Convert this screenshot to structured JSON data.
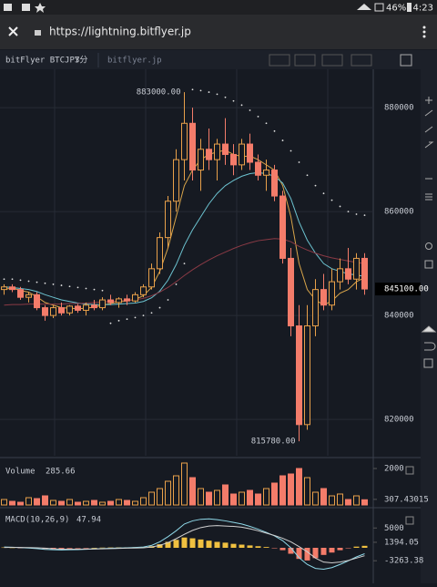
{
  "status_bar": {
    "battery": "46%",
    "time": "4:23"
  },
  "browser": {
    "url": "https://lightning.bitflyer.jp"
  },
  "toolbar": {
    "symbol": "bitFlyer BTCJPY",
    "interval": "3分",
    "site": "bitflyer.jp"
  },
  "chart_data": [
    {
      "type": "candlestick",
      "up_color": "#e8a04a",
      "down_color": "#f47c6a",
      "open": [
        845000,
        845500,
        845000,
        843500,
        844000,
        841500,
        840000,
        841500,
        840500,
        841800,
        841000,
        842000,
        841500,
        843000,
        842500,
        843200,
        842800,
        844000,
        845500,
        849000,
        855000,
        862000,
        870000,
        877000,
        868000,
        872000,
        870000,
        873000,
        871000,
        869000,
        873000,
        869500,
        867000,
        868000,
        863000,
        851000,
        838000,
        819000,
        838000,
        845000,
        842000,
        846500,
        849000,
        847000,
        851000
      ],
      "high": [
        846000,
        846000,
        845500,
        844500,
        844500,
        842000,
        842000,
        842500,
        842000,
        842200,
        842500,
        843000,
        843500,
        844000,
        843500,
        844000,
        844500,
        846000,
        850000,
        856000,
        863000,
        872000,
        883000,
        880000,
        874000,
        876000,
        874000,
        878000,
        873000,
        874000,
        875000,
        871000,
        870000,
        869000,
        864000,
        853000,
        842000,
        842000,
        847000,
        848000,
        849000,
        851000,
        853000,
        852000,
        852000
      ],
      "low": [
        844000,
        844500,
        843000,
        842500,
        841000,
        839000,
        839500,
        840000,
        840000,
        840500,
        840000,
        841000,
        841000,
        842000,
        841500,
        842000,
        842500,
        843500,
        845000,
        848000,
        853000,
        860000,
        866000,
        866000,
        864000,
        868000,
        866000,
        869000,
        867000,
        868000,
        868000,
        866000,
        864000,
        862000,
        850000,
        836000,
        815780,
        818000,
        836000,
        841000,
        841000,
        845000,
        846000,
        845000,
        844000
      ],
      "close": [
        845500,
        845000,
        843500,
        844000,
        841500,
        840000,
        841500,
        840500,
        841800,
        841000,
        842000,
        841500,
        843000,
        842500,
        843200,
        842800,
        844000,
        845500,
        849000,
        855000,
        862000,
        870000,
        877000,
        868000,
        872000,
        870000,
        873000,
        871000,
        869000,
        873000,
        869500,
        867000,
        868000,
        863000,
        851000,
        838000,
        819000,
        838000,
        845000,
        842000,
        846500,
        849000,
        847000,
        851000,
        845100
      ],
      "series": [
        {
          "color": "#d9a54a",
          "values": [
            845000,
            845300,
            844800,
            844500,
            843600,
            842500,
            842000,
            841500,
            841400,
            841300,
            841400,
            841600,
            842000,
            842300,
            842600,
            842800,
            843100,
            843800,
            845400,
            848500,
            853000,
            859000,
            865000,
            868000,
            870000,
            871000,
            871500,
            871800,
            871000,
            870600,
            870700,
            870000,
            869000,
            868000,
            865000,
            859000,
            850000,
            845000,
            843000,
            842000,
            842800,
            844300,
            845000,
            846500,
            847300
          ]
        },
        {
          "color": "#6cc3d0",
          "values": [
            845500,
            845400,
            845200,
            845000,
            844600,
            844000,
            843500,
            843000,
            842700,
            842400,
            842200,
            842100,
            842100,
            842100,
            842200,
            842300,
            842400,
            842700,
            843400,
            844700,
            846800,
            849800,
            853500,
            856500,
            859000,
            861500,
            863500,
            865000,
            866000,
            866800,
            867300,
            867500,
            867300,
            866800,
            865500,
            862500,
            858000,
            854500,
            852000,
            850000,
            849000,
            848500,
            848000,
            847800,
            847500
          ]
        },
        {
          "color": "#8a3a45",
          "values": [
            842000,
            842100,
            842100,
            842200,
            842200,
            842200,
            842200,
            842200,
            842300,
            842300,
            842400,
            842500,
            842600,
            842700,
            842800,
            842900,
            843000,
            843300,
            843800,
            844500,
            845400,
            846500,
            847700,
            848800,
            849800,
            850700,
            851500,
            852200,
            852900,
            853500,
            854000,
            854400,
            854600,
            854800,
            854700,
            854200,
            853300,
            852600,
            852000,
            851500,
            851100,
            850800,
            850500,
            850200,
            850000
          ]
        }
      ],
      "sar": {
        "color": "#e0e0e0",
        "values": [
          847000,
          847000,
          846800,
          846600,
          846400,
          846200,
          846000,
          845800,
          845600,
          845400,
          845200,
          845000,
          844800,
          838500,
          839000,
          839300,
          839600,
          840000,
          840500,
          841500,
          843000,
          846000,
          850000,
          883500,
          883300,
          883000,
          882600,
          882000,
          881300,
          880500,
          879500,
          878300,
          877000,
          875500,
          873700,
          871700,
          869500,
          867000,
          865000,
          863500,
          862200,
          861000,
          860000,
          859500,
          859300
        ]
      },
      "annotations": [
        {
          "value": 883000,
          "label": "883000.00"
        },
        {
          "value": 815780,
          "label": "815780.00"
        }
      ],
      "last": {
        "value": 845100,
        "label": "845100.00"
      },
      "ylim": [
        813000,
        887400
      ],
      "yticks": [
        820000,
        840000,
        860000,
        880000
      ],
      "grid": true
    },
    {
      "type": "bar",
      "title": "Volume",
      "current": 285.66,
      "values": [
        300,
        200,
        150,
        400,
        350,
        500,
        250,
        200,
        300,
        150,
        200,
        250,
        150,
        200,
        300,
        250,
        200,
        400,
        700,
        900,
        1300,
        1600,
        2300,
        1500,
        900,
        700,
        800,
        1100,
        600,
        700,
        800,
        600,
        900,
        1200,
        1600,
        1700,
        2000,
        1500,
        700,
        900,
        500,
        600,
        300,
        500,
        285.66
      ],
      "ylim": [
        0,
        2400
      ],
      "yticks": [
        307.43015,
        2000
      ]
    },
    {
      "type": "macd",
      "title": "MACD(10,26,9)",
      "current": 47.94,
      "pos_color": "#f0c040",
      "neg_color": "#f47c6a",
      "values": [
        100,
        50,
        -50,
        -100,
        -200,
        -300,
        -250,
        -200,
        -150,
        -100,
        -50,
        0,
        50,
        80,
        100,
        120,
        150,
        200,
        400,
        900,
        1500,
        2000,
        2600,
        2400,
        2100,
        1800,
        1500,
        1300,
        1000,
        800,
        600,
        400,
        200,
        -100,
        -600,
        -1500,
        -2800,
        -3200,
        -2600,
        -1800,
        -1200,
        -600,
        -100,
        300,
        500
      ],
      "series": [
        {
          "color": "#8fd8e8",
          "values": [
            200,
            150,
            50,
            -50,
            -200,
            -400,
            -500,
            -550,
            -500,
            -450,
            -380,
            -300,
            -200,
            -120,
            -50,
            0,
            80,
            200,
            600,
            1500,
            2800,
            4300,
            6000,
            6800,
            7200,
            7300,
            7100,
            6800,
            6400,
            6000,
            5400,
            4700,
            3900,
            3000,
            1800,
            0,
            -2500,
            -4200,
            -5200,
            -5400,
            -5000,
            -4200,
            -3300,
            -2300,
            -1500
          ]
        },
        {
          "color": "#d0d0d0",
          "values": [
            100,
            120,
            100,
            60,
            0,
            -100,
            -250,
            -350,
            -350,
            -350,
            -330,
            -300,
            -250,
            -200,
            -150,
            -100,
            -70,
            0,
            200,
            600,
            1300,
            2300,
            3400,
            4400,
            5100,
            5500,
            5600,
            5500,
            5400,
            5200,
            4800,
            4300,
            3700,
            3100,
            2400,
            1500,
            300,
            -1000,
            -2600,
            -3600,
            -3800,
            -3600,
            -3200,
            -2600,
            -2000
          ]
        }
      ],
      "ylim": [
        -8050,
        9430
      ],
      "yticks": [
        -3263.38,
        1394.05,
        5000
      ]
    }
  ]
}
